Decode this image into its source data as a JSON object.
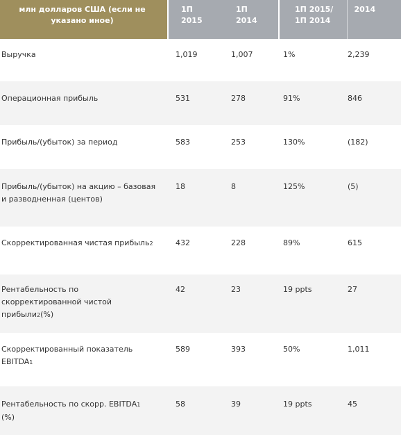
{
  "header": {
    "col0": "млн долларов США (если не указано иное)",
    "col1_line1": "1П",
    "col1_line2": "2015",
    "col2_line1": "1П",
    "col2_line2": "2014",
    "col3_line1": "1П 2015/",
    "col3_line2": "1П 2014",
    "col4": "2014"
  },
  "rows": [
    {
      "label": "Выручка",
      "h1_2015": "1,019",
      "h1_2014": "1,007",
      "change": "1%",
      "fy2014": "2,239"
    },
    {
      "label": "Операционная прибыль",
      "h1_2015": "531",
      "h1_2014": "278",
      "change": "91%",
      "fy2014": "846"
    },
    {
      "label": "Прибыль/(убыток) за период",
      "h1_2015": "583",
      "h1_2014": "253",
      "change": "130%",
      "fy2014": "(182)"
    },
    {
      "label_line1": "Прибыль/(убыток) на акцию – базовая",
      "label_line2": "и разводненная (центов)",
      "h1_2015": "18",
      "h1_2014": "8",
      "change": "125%",
      "fy2014": "(5)"
    },
    {
      "label": "Скорректированная чистая прибыль",
      "footnote": "2",
      "h1_2015": "432",
      "h1_2014": "228",
      "change": "89%",
      "fy2014": "615"
    },
    {
      "label_line1": "Рентабельность по",
      "label_line2": "скорректированной чистой",
      "label_line3a": "прибыли",
      "footnote": "2",
      "label_line3b": "(%)",
      "h1_2015": "42",
      "h1_2014": "23",
      "change": "19 ppts",
      "fy2014": "27"
    },
    {
      "label_line1": "Скорректированный показатель",
      "label_line2": "EBITDA",
      "footnote": "1",
      "h1_2015": "589",
      "h1_2014": "393",
      "change": "50%",
      "fy2014": "1,011"
    },
    {
      "label_line1": "Рентабельность по скорр. EBITDA",
      "footnote": "1",
      "label_line2": "(%)",
      "h1_2015": "58",
      "h1_2014": "39",
      "change": "19 ppts",
      "fy2014": "45"
    }
  ]
}
